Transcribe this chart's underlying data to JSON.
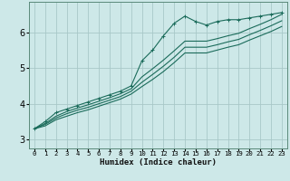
{
  "xlabel": "Humidex (Indice chaleur)",
  "ylabel": "",
  "bg_color": "#cde8e8",
  "grid_color": "#a8c8c8",
  "line_color": "#1a6b5a",
  "xlim": [
    -0.5,
    23.5
  ],
  "ylim": [
    2.75,
    6.85
  ],
  "xticks": [
    0,
    1,
    2,
    3,
    4,
    5,
    6,
    7,
    8,
    9,
    10,
    11,
    12,
    13,
    14,
    15,
    16,
    17,
    18,
    19,
    20,
    21,
    22,
    23
  ],
  "yticks": [
    3,
    4,
    5,
    6
  ],
  "series": [
    {
      "x": [
        0,
        1,
        2,
        3,
        4,
        5,
        6,
        7,
        8,
        9,
        10,
        11,
        12,
        13,
        14,
        15,
        16,
        17,
        18,
        19,
        20,
        21,
        22,
        23
      ],
      "y": [
        3.3,
        3.5,
        3.75,
        3.85,
        3.95,
        4.05,
        4.15,
        4.25,
        4.35,
        4.5,
        5.2,
        5.5,
        5.9,
        6.25,
        6.45,
        6.3,
        6.2,
        6.3,
        6.35,
        6.35,
        6.4,
        6.45,
        6.5,
        6.55
      ],
      "marker": true
    },
    {
      "x": [
        0,
        1,
        2,
        3,
        4,
        5,
        6,
        7,
        8,
        9,
        10,
        11,
        12,
        13,
        14,
        15,
        16,
        17,
        18,
        19,
        20,
        21,
        22,
        23
      ],
      "y": [
        3.3,
        3.45,
        3.65,
        3.78,
        3.88,
        3.97,
        4.07,
        4.17,
        4.28,
        4.42,
        4.75,
        4.98,
        5.22,
        5.48,
        5.75,
        5.75,
        5.75,
        5.82,
        5.9,
        5.97,
        6.1,
        6.22,
        6.35,
        6.5
      ],
      "marker": false
    },
    {
      "x": [
        0,
        1,
        2,
        3,
        4,
        5,
        6,
        7,
        8,
        9,
        10,
        11,
        12,
        13,
        14,
        15,
        16,
        17,
        18,
        19,
        20,
        21,
        22,
        23
      ],
      "y": [
        3.3,
        3.42,
        3.6,
        3.72,
        3.82,
        3.9,
        4.0,
        4.1,
        4.2,
        4.35,
        4.6,
        4.82,
        5.05,
        5.3,
        5.58,
        5.58,
        5.58,
        5.65,
        5.73,
        5.8,
        5.93,
        6.05,
        6.18,
        6.32
      ],
      "marker": false
    },
    {
      "x": [
        0,
        1,
        2,
        3,
        4,
        5,
        6,
        7,
        8,
        9,
        10,
        11,
        12,
        13,
        14,
        15,
        16,
        17,
        18,
        19,
        20,
        21,
        22,
        23
      ],
      "y": [
        3.3,
        3.38,
        3.55,
        3.65,
        3.75,
        3.83,
        3.93,
        4.03,
        4.13,
        4.27,
        4.48,
        4.68,
        4.9,
        5.15,
        5.42,
        5.42,
        5.42,
        5.5,
        5.58,
        5.65,
        5.78,
        5.9,
        6.02,
        6.16
      ],
      "marker": false
    }
  ]
}
